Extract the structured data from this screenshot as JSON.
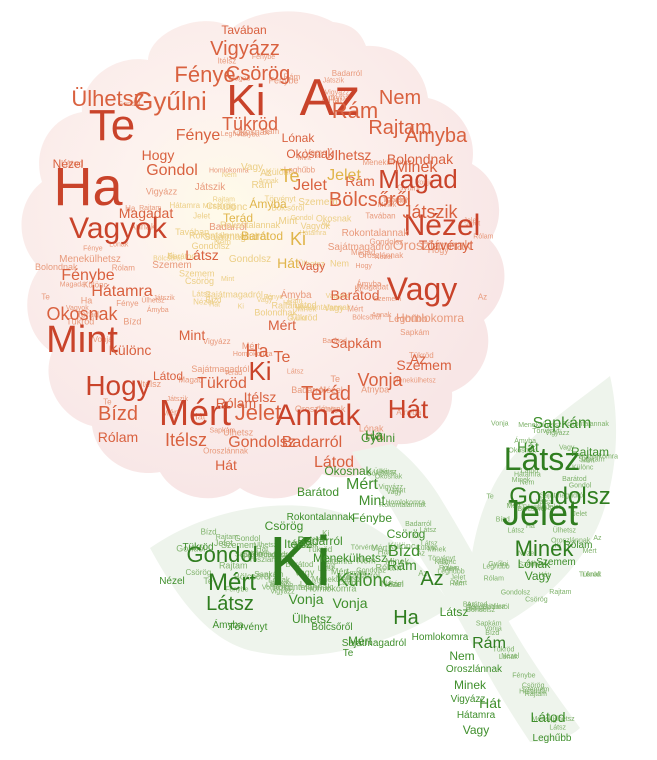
{
  "palette": {
    "petal_dark": "#c9432a",
    "petal_mid": "#d9613f",
    "petal_light": "#e89a7c",
    "center": "#e0b54a",
    "center_light": "#eccf86",
    "leaf_dark": "#2f7d1f",
    "leaf_mid": "#3f8f2c",
    "leaf_light": "#7fb26b",
    "petal_bg": "#fbeeee",
    "leaf_bg": "#eef4ec"
  },
  "words": {
    "petal_big": [
      "Az",
      "Ki",
      "Ha",
      "Te",
      "Vagyok",
      "Mint",
      "Hogy",
      "Mért",
      "Annak",
      "Jelet",
      "Vagy",
      "Nézel",
      "Magad",
      "Hát",
      "Fénye",
      "Gyűlni",
      "Ülhetsz",
      "Csörög",
      "Vigyázz",
      "Rám",
      "Nem",
      "Rajtam",
      "Ámyba",
      "Átnyba",
      "Játszik",
      "Bölcsőről",
      "Oroszlánnak",
      "Tükröd",
      "Bízd",
      "Rólam",
      "Itélsz",
      "Terád",
      "Vonja",
      "Badarról",
      "Látod",
      "Gondolsz",
      "Okosnak",
      "Különc",
      "Fénybe",
      "Hátamra",
      "Minek",
      "Szemem",
      "Bolondnak",
      "Homlokomra",
      "Törvényt",
      "Sapkám",
      "Lónak",
      "Barátod",
      "Menekülhetsz",
      "Sajátmagadról",
      "Rokontalannak",
      "Leghűbb",
      "Tavában",
      "Látsz",
      "Gondol",
      "Magadat"
    ],
    "center": [
      "Te",
      "Jelet",
      "Ki",
      "Hát",
      "Rám",
      "Szemem",
      "Gondolsz",
      "Terád",
      "Sajátmagadról",
      "Barátod",
      "Ámyba",
      "Rokontalannak",
      "Különc",
      "Az",
      "Mint",
      "Vagy"
    ],
    "leaf": [
      "Ki",
      "Jelet",
      "Látsz",
      "Gondolsz",
      "Minek",
      "Mért",
      "Gondol",
      "Különc",
      "Az",
      "Ha",
      "Sapkám",
      "Rajtam",
      "Hát",
      "Mért",
      "Mint",
      "Fénybe",
      "Látsz",
      "Bízd",
      "Rám",
      "Vonja",
      "Menekülhetsz",
      "Rokontalannak",
      "Bölcsőről",
      "Törvényt",
      "Barátod",
      "Okosnak",
      "Csörög",
      "Vagy",
      "Rólam",
      "Lónak",
      "Nézel",
      "Tükröd",
      "Badarról",
      "Itélsz",
      "Ülhetsz",
      "Homlokomra",
      "Szemem",
      "Vigyázz",
      "Hátamra",
      "Leghűbb",
      "Látod",
      "Ámyba",
      "Gyűlni",
      "Te",
      "Sajátmagadról",
      "Oroszlánnak",
      "Nem"
    ]
  }
}
